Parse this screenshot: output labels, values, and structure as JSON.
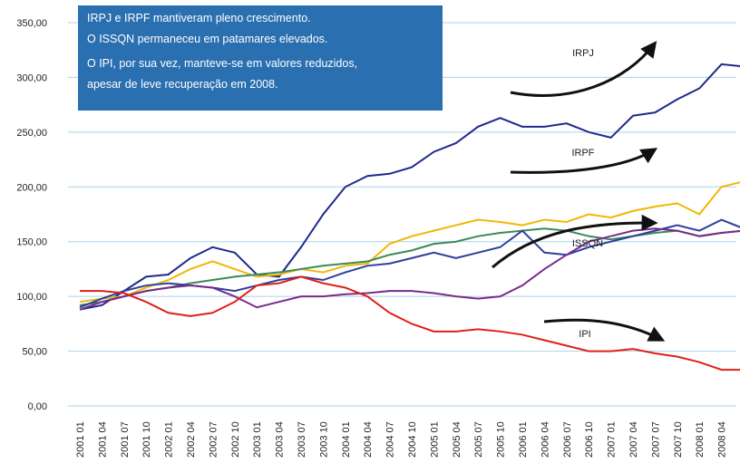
{
  "chart_data": {
    "type": "line",
    "annotation_box": [
      "IRPJ e IRPF mantiveram pleno crescimento.",
      "O ISSQN permaneceu em patamares elevados.",
      "O IPI, por sua vez, manteve-se em valores reduzidos,",
      "apesar de leve recuperação em 2008."
    ],
    "categories": [
      "2001 01",
      "2001 04",
      "2001 07",
      "2001 10",
      "2002 01",
      "2002 04",
      "2002 07",
      "2002 10",
      "2003 01",
      "2003 04",
      "2003 07",
      "2003 10",
      "2004 01",
      "2004 04",
      "2004 07",
      "2004 10",
      "2005 01",
      "2005 04",
      "2005 07",
      "2005 10",
      "2006 01",
      "2006 04",
      "2006 07",
      "2006 10",
      "2007 01",
      "2007 04",
      "2007 07",
      "2007 10",
      "2008 01",
      "2008 04",
      null
    ],
    "series": [
      {
        "name": "IRPJ",
        "color": "#1f2a8c",
        "values": [
          88,
          92,
          105,
          118,
          120,
          135,
          145,
          140,
          120,
          118,
          145,
          175,
          200,
          210,
          212,
          218,
          232,
          240,
          255,
          263,
          255,
          255,
          258,
          250,
          245,
          265,
          268,
          280,
          290,
          312,
          310
        ]
      },
      {
        "name": "IRPF",
        "color": "#f2b705",
        "values": [
          95,
          98,
          100,
          108,
          115,
          125,
          132,
          125,
          118,
          120,
          125,
          122,
          128,
          130,
          148,
          155,
          160,
          165,
          170,
          168,
          165,
          170,
          168,
          175,
          172,
          178,
          182,
          185,
          175,
          200,
          205
        ]
      },
      {
        "name": "ISSQN",
        "color": "#3a8a5a",
        "values": [
          92,
          95,
          100,
          105,
          108,
          112,
          115,
          118,
          120,
          122,
          125,
          128,
          130,
          132,
          138,
          142,
          148,
          150,
          155,
          158,
          160,
          162,
          160,
          155,
          152,
          155,
          158,
          160,
          155,
          158,
          160
        ]
      },
      {
        "color": "#2b3f9e",
        "values": [
          90,
          98,
          105,
          110,
          112,
          110,
          108,
          105,
          110,
          115,
          118,
          115,
          122,
          128,
          130,
          135,
          140,
          135,
          140,
          145,
          160,
          140,
          138,
          145,
          150,
          155,
          160,
          165,
          160,
          170,
          162
        ]
      },
      {
        "color": "#7a2a8a",
        "values": [
          88,
          95,
          100,
          105,
          108,
          110,
          108,
          100,
          90,
          95,
          100,
          100,
          102,
          103,
          105,
          105,
          103,
          100,
          98,
          100,
          110,
          125,
          138,
          150,
          155,
          160,
          162,
          160,
          155,
          158,
          160
        ]
      },
      {
        "name": "IPI",
        "color": "#e0201a",
        "values": [
          105,
          105,
          103,
          95,
          85,
          82,
          85,
          95,
          110,
          112,
          118,
          112,
          108,
          100,
          85,
          75,
          68,
          68,
          70,
          68,
          65,
          60,
          55,
          50,
          50,
          52,
          48,
          45,
          40,
          33,
          33
        ]
      }
    ],
    "ylim": [
      0,
      350
    ],
    "yticks": [
      {
        "value": 0,
        "label": "0,00"
      },
      {
        "value": 50,
        "label": "50,00"
      },
      {
        "value": 100,
        "label": "100,00"
      },
      {
        "value": 150,
        "label": "150,00"
      },
      {
        "value": 200,
        "label": "200,00"
      },
      {
        "value": 250,
        "label": "250,00"
      },
      {
        "value": 300,
        "label": "300,00"
      },
      {
        "value": 350,
        "label": "350,00"
      }
    ],
    "grid": true
  }
}
